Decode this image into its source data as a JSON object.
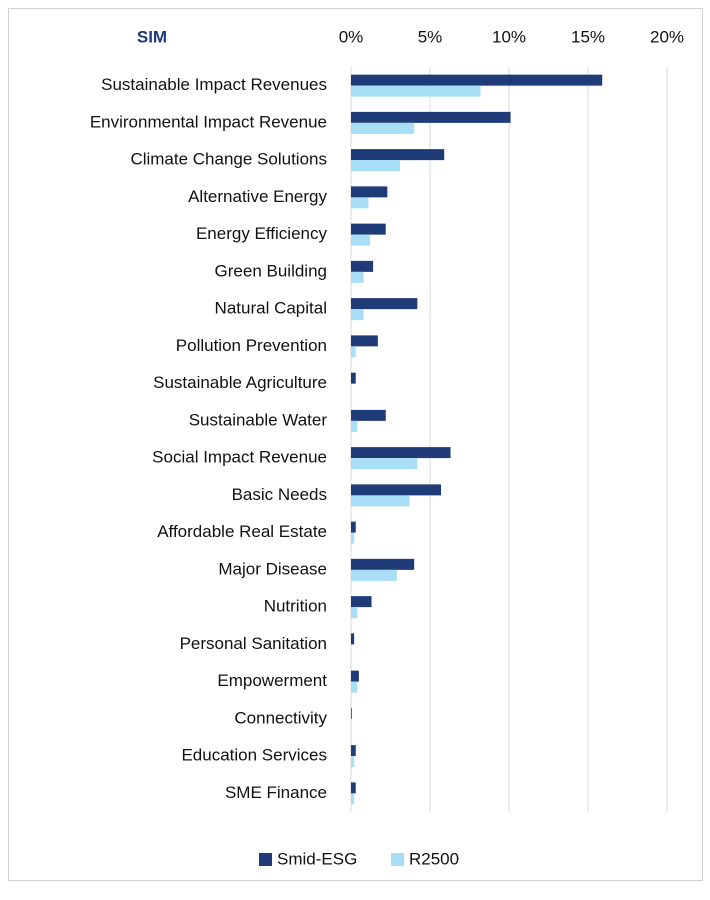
{
  "chart_data": {
    "type": "hbar",
    "title": "SIM",
    "categories": [
      "Sustainable Impact Revenues",
      "Environmental Impact Revenue",
      "Climate Change Solutions",
      "Alternative Energy",
      "Energy Efficiency",
      "Green Building",
      "Natural Capital",
      "Pollution Prevention",
      "Sustainable Agriculture",
      "Sustainable Water",
      "Social Impact Revenue",
      "Basic Needs",
      "Affordable Real Estate",
      "Major Disease",
      "Nutrition",
      "Personal Sanitation",
      "Empowerment",
      "Connectivity",
      "Education Services",
      "SME Finance"
    ],
    "series": [
      {
        "name": "Smid-ESG",
        "color": "#1f3b78",
        "values": [
          15.9,
          10.1,
          5.9,
          2.3,
          2.2,
          1.4,
          4.2,
          1.7,
          0.3,
          2.2,
          6.3,
          5.7,
          0.3,
          4.0,
          1.3,
          0.2,
          0.5,
          0.05,
          0.3,
          0.3
        ]
      },
      {
        "name": "R2500",
        "color": "#a9dff6",
        "values": [
          8.2,
          4.0,
          3.1,
          1.1,
          1.2,
          0.8,
          0.8,
          0.3,
          0.0,
          0.4,
          4.2,
          3.7,
          0.2,
          2.9,
          0.4,
          0.0,
          0.4,
          0.0,
          0.2,
          0.2
        ]
      }
    ],
    "xlim": [
      0,
      20
    ],
    "xticks": [
      {
        "value": 0,
        "label": "0%"
      },
      {
        "value": 5,
        "label": "5%"
      },
      {
        "value": 10,
        "label": "10%"
      },
      {
        "value": 15,
        "label": "15%"
      },
      {
        "value": 20,
        "label": "20%"
      }
    ],
    "grid": true,
    "legend": "bottom"
  }
}
